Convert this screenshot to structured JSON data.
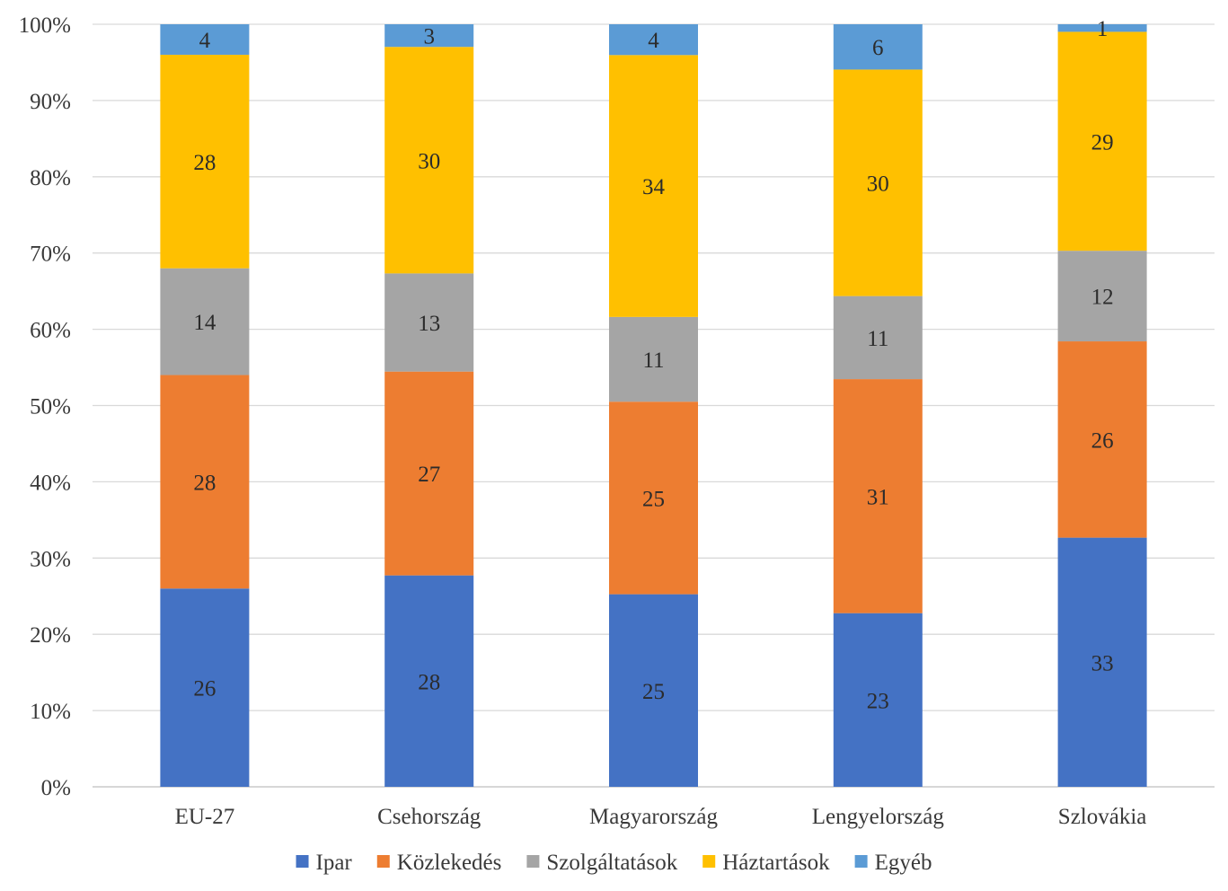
{
  "chart_data": {
    "type": "bar",
    "stacked": true,
    "percent_stacked": true,
    "title": "",
    "xlabel": "",
    "ylabel": "",
    "ylim": [
      0,
      100
    ],
    "y_ticks": [
      "0%",
      "10%",
      "20%",
      "30%",
      "40%",
      "50%",
      "60%",
      "70%",
      "80%",
      "90%",
      "100%"
    ],
    "grid": "horizontal",
    "legend_position": "bottom",
    "categories": [
      "EU-27",
      "Csehország",
      "Magyarország",
      "Lengyelország",
      "Szlovákia"
    ],
    "series": [
      {
        "name": "Ipar",
        "color": "#4472C4",
        "values": [
          26,
          28,
          25,
          23,
          33
        ]
      },
      {
        "name": "Közlekedés",
        "color": "#ED7D31",
        "values": [
          28,
          27,
          25,
          31,
          26
        ]
      },
      {
        "name": "Szolgáltatások",
        "color": "#A5A5A5",
        "values": [
          14,
          13,
          11,
          11,
          12
        ]
      },
      {
        "name": "Háztartások",
        "color": "#FFC000",
        "values": [
          28,
          30,
          34,
          30,
          29
        ]
      },
      {
        "name": "Egyéb",
        "color": "#5B9BD5",
        "values": [
          4,
          3,
          4,
          6,
          1
        ]
      }
    ]
  }
}
